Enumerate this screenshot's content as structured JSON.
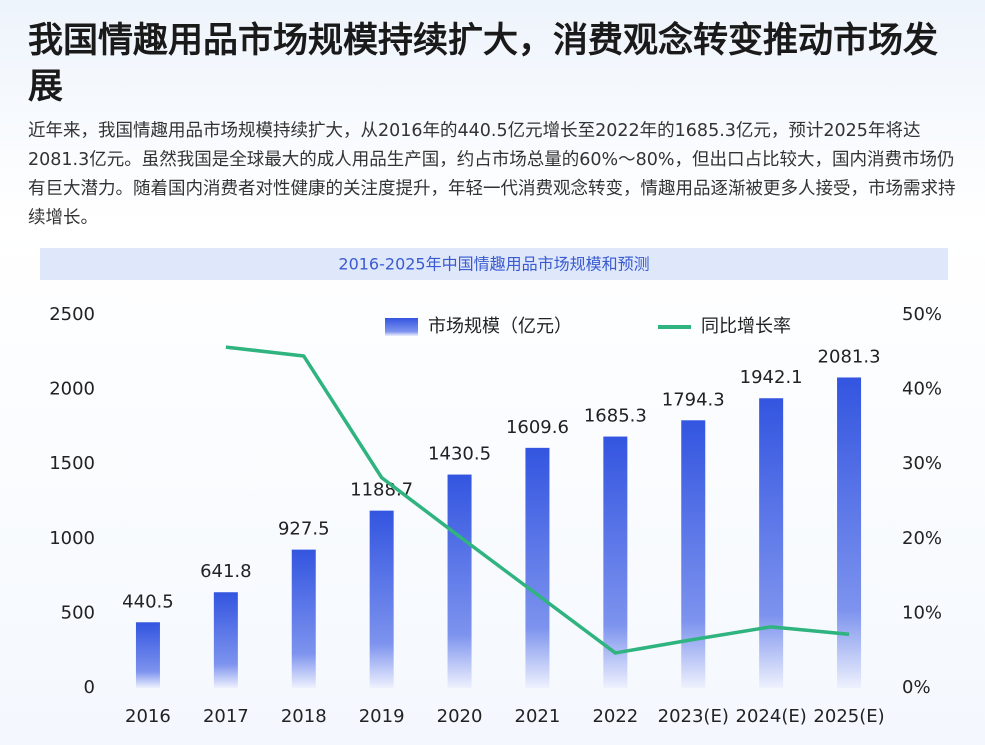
{
  "header": {
    "title": "我国情趣用品市场规模持续扩大，消费观念转变推动市场发展",
    "paragraph": "近年来，我国情趣用品市场规模持续扩大，从2016年的440.5亿元增长至2022年的1685.3亿元，预计2025年将达2081.3亿元。虽然我国是全球最大的成人用品生产国，约占市场总量的60%～80%，但出口占比较大，国内消费市场仍有巨大潜力。随着国内消费者对性健康的关注度提升，年轻一代消费观念转变，情趣用品逐渐被更多人接受，市场需求持续增长。"
  },
  "chart_data": {
    "type": "combo",
    "title": "2016-2025年中国情趣用品市场规模和预测",
    "categories": [
      "2016",
      "2017",
      "2018",
      "2019",
      "2020",
      "2021",
      "2022",
      "2023(E)",
      "2024(E)",
      "2025(E)"
    ],
    "series": [
      {
        "name": "市场规模（亿元）",
        "kind": "bar",
        "color": "#3b5ee6",
        "values": [
          440.5,
          641.8,
          927.5,
          1188.7,
          1430.5,
          1609.6,
          1685.3,
          1794.3,
          1942.1,
          2081.3
        ]
      },
      {
        "name": "同比增长率",
        "kind": "line",
        "axis": "y2",
        "color": "#2fb37f",
        "values": [
          null,
          45.7,
          44.5,
          28.2,
          20.3,
          12.5,
          4.7,
          6.5,
          8.2,
          7.2
        ]
      }
    ],
    "ylim": [
      0,
      2500
    ],
    "yticks": [
      0,
      500,
      1000,
      1500,
      2000,
      2500
    ],
    "y2lim": [
      0,
      50
    ],
    "y2ticks": [
      {
        "value": 0,
        "label": "0%"
      },
      {
        "value": 10,
        "label": "10%"
      },
      {
        "value": 20,
        "label": "20%"
      },
      {
        "value": 30,
        "label": "30%"
      },
      {
        "value": 40,
        "label": "40%"
      },
      {
        "value": 50,
        "label": "50%"
      }
    ],
    "grid": false,
    "legend": "top"
  }
}
